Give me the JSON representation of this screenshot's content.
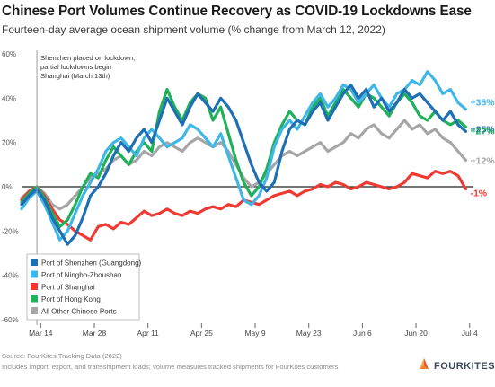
{
  "title": "Chinese Port Volumes Continue Recovery as COVID-19 Lockdowns Ease",
  "subtitle": "Fourteen-day average ocean shipment volume (% change from March 12, 2022)",
  "annotation": "Shenzhen placed on lockdown, partial lockdowns begin in Shanghai (March 13th)",
  "footer": {
    "source": "Source: FourKites Tracking Data (2022)",
    "note": "Includes import, export, and transshipment loads; volume measures tracked shipments for FourKites customers"
  },
  "logo": {
    "text": "FOURKITES",
    "icon": "kite-icon"
  },
  "colors": {
    "shenzhen": "#1f6fb5",
    "ningbo": "#3fb7e6",
    "shanghai": "#ee3a33",
    "hongkong": "#1fb05a",
    "other": "#a6a6a6"
  },
  "chart_data": {
    "type": "line",
    "title": "Chinese Port Volumes Continue Recovery as COVID-19 Lockdowns Ease",
    "subtitle": "Fourteen-day average ocean shipment volume (% change from March 12, 2022)",
    "x_tick_labels": [
      "Mar 14",
      "Mar 28",
      "Apr 11",
      "Apr 25",
      "May 9",
      "May 23",
      "Jun 6",
      "Jun 20",
      "Jul 4"
    ],
    "x_tick_days": [
      0,
      14,
      28,
      42,
      56,
      70,
      84,
      98,
      112
    ],
    "x_range": [
      "Mar 9",
      "Jul 5"
    ],
    "y_tick_labels": [
      "60%",
      "40%",
      "20%",
      "0%",
      "-20%",
      "-40%",
      "-60%"
    ],
    "y_ticks": [
      60,
      40,
      20,
      0,
      -20,
      -40,
      -60
    ],
    "ylim": [
      -60,
      60
    ],
    "grid": false,
    "legend_position": "bottom-left",
    "series": [
      {
        "name": "Port of Shenzhen (Guangdong)",
        "end_label": "+25%",
        "x": [
          "Mar 9",
          "Mar 11",
          "Mar 13",
          "Mar 15",
          "Mar 17",
          "Mar 19",
          "Mar 21",
          "Mar 23",
          "Mar 25",
          "Mar 27",
          "Mar 29",
          "Mar 31",
          "Apr 2",
          "Apr 4",
          "Apr 6",
          "Apr 8",
          "Apr 10",
          "Apr 12",
          "Apr 14",
          "Apr 16",
          "Apr 18",
          "Apr 20",
          "Apr 22",
          "Apr 24",
          "Apr 26",
          "Apr 28",
          "Apr 30",
          "May 2",
          "May 4",
          "May 6",
          "May 8",
          "May 10",
          "May 12",
          "May 14",
          "May 16",
          "May 18",
          "May 20",
          "May 22",
          "May 24",
          "May 26",
          "May 28",
          "May 30",
          "Jun 1",
          "Jun 3",
          "Jun 5",
          "Jun 7",
          "Jun 9",
          "Jun 11",
          "Jun 13",
          "Jun 15",
          "Jun 17",
          "Jun 19",
          "Jun 21",
          "Jun 23",
          "Jun 25",
          "Jun 27",
          "Jun 29",
          "Jul 1",
          "Jul 3"
        ],
        "values": [
          -8,
          -4,
          -1,
          -6,
          -14,
          -20,
          -26,
          -22,
          -14,
          -4,
          0,
          6,
          14,
          20,
          16,
          22,
          26,
          20,
          30,
          40,
          34,
          28,
          36,
          42,
          38,
          34,
          40,
          36,
          30,
          20,
          10,
          2,
          -2,
          2,
          16,
          26,
          30,
          28,
          34,
          38,
          30,
          36,
          42,
          46,
          40,
          44,
          36,
          40,
          34,
          38,
          44,
          40,
          42,
          38,
          34,
          30,
          34,
          28,
          25
        ]
      },
      {
        "name": "Port of Ningbo-Zhoushan",
        "end_label": "+35%",
        "x": [
          "Mar 9",
          "Mar 11",
          "Mar 13",
          "Mar 15",
          "Mar 17",
          "Mar 19",
          "Mar 21",
          "Mar 23",
          "Mar 25",
          "Mar 27",
          "Mar 29",
          "Mar 31",
          "Apr 2",
          "Apr 4",
          "Apr 6",
          "Apr 8",
          "Apr 10",
          "Apr 12",
          "Apr 14",
          "Apr 16",
          "Apr 18",
          "Apr 20",
          "Apr 22",
          "Apr 24",
          "Apr 26",
          "Apr 28",
          "Apr 30",
          "May 2",
          "May 4",
          "May 6",
          "May 8",
          "May 10",
          "May 12",
          "May 14",
          "May 16",
          "May 18",
          "May 20",
          "May 22",
          "May 24",
          "May 26",
          "May 28",
          "May 30",
          "Jun 1",
          "Jun 3",
          "Jun 5",
          "Jun 7",
          "Jun 9",
          "Jun 11",
          "Jun 13",
          "Jun 15",
          "Jun 17",
          "Jun 19",
          "Jun 21",
          "Jun 23",
          "Jun 25",
          "Jun 27",
          "Jun 29",
          "Jul 1",
          "Jul 3"
        ],
        "values": [
          -10,
          -5,
          -2,
          -8,
          -16,
          -24,
          -20,
          -12,
          -4,
          2,
          8,
          16,
          20,
          22,
          18,
          14,
          22,
          26,
          22,
          18,
          20,
          22,
          28,
          26,
          22,
          18,
          24,
          14,
          4,
          -6,
          -8,
          -4,
          4,
          18,
          26,
          30,
          26,
          32,
          38,
          42,
          36,
          40,
          46,
          44,
          38,
          42,
          46,
          40,
          36,
          42,
          44,
          48,
          46,
          52,
          48,
          42,
          44,
          38,
          35
        ]
      },
      {
        "name": "Port of Shanghai",
        "end_label": "-1%",
        "x": [
          "Mar 9",
          "Mar 11",
          "Mar 13",
          "Mar 15",
          "Mar 17",
          "Mar 19",
          "Mar 21",
          "Mar 23",
          "Mar 25",
          "Mar 27",
          "Mar 29",
          "Mar 31",
          "Apr 2",
          "Apr 4",
          "Apr 6",
          "Apr 8",
          "Apr 10",
          "Apr 12",
          "Apr 14",
          "Apr 16",
          "Apr 18",
          "Apr 20",
          "Apr 22",
          "Apr 24",
          "Apr 26",
          "Apr 28",
          "Apr 30",
          "May 2",
          "May 4",
          "May 6",
          "May 8",
          "May 10",
          "May 12",
          "May 14",
          "May 16",
          "May 18",
          "May 20",
          "May 22",
          "May 24",
          "May 26",
          "May 28",
          "May 30",
          "Jun 1",
          "Jun 3",
          "Jun 5",
          "Jun 7",
          "Jun 9",
          "Jun 11",
          "Jun 13",
          "Jun 15",
          "Jun 17",
          "Jun 19",
          "Jun 21",
          "Jun 23",
          "Jun 25",
          "Jun 27",
          "Jun 29",
          "Jul 1",
          "Jul 3"
        ],
        "values": [
          -6,
          -2,
          0,
          -4,
          -10,
          -15,
          -17,
          -20,
          -22,
          -24,
          -18,
          -17,
          -19,
          -16,
          -17,
          -14,
          -11,
          -13,
          -12,
          -10,
          -12,
          -13,
          -11,
          -12,
          -10,
          -9,
          -10,
          -8,
          -9,
          -6,
          -7,
          -8,
          -6,
          -4,
          -3,
          -2,
          -4,
          -2,
          -1,
          1,
          0,
          2,
          1,
          -1,
          0,
          2,
          1,
          0,
          -1,
          0,
          2,
          6,
          5,
          4,
          7,
          6,
          7,
          5,
          -1
        ]
      },
      {
        "name": "Port of Hong Kong",
        "end_label": "+27%",
        "x": [
          "Mar 9",
          "Mar 11",
          "Mar 13",
          "Mar 15",
          "Mar 17",
          "Mar 19",
          "Mar 21",
          "Mar 23",
          "Mar 25",
          "Mar 27",
          "Mar 29",
          "Mar 31",
          "Apr 2",
          "Apr 4",
          "Apr 6",
          "Apr 8",
          "Apr 10",
          "Apr 12",
          "Apr 14",
          "Apr 16",
          "Apr 18",
          "Apr 20",
          "Apr 22",
          "Apr 24",
          "Apr 26",
          "Apr 28",
          "Apr 30",
          "May 2",
          "May 4",
          "May 6",
          "May 8",
          "May 10",
          "May 12",
          "May 14",
          "May 16",
          "May 18",
          "May 20",
          "May 22",
          "May 24",
          "May 26",
          "May 28",
          "May 30",
          "Jun 1",
          "Jun 3",
          "Jun 5",
          "Jun 7",
          "Jun 9",
          "Jun 11",
          "Jun 13",
          "Jun 15",
          "Jun 17",
          "Jun 19",
          "Jun 21",
          "Jun 23",
          "Jun 25",
          "Jun 27",
          "Jun 29",
          "Jul 1",
          "Jul 3"
        ],
        "values": [
          -7,
          -3,
          0,
          -5,
          -12,
          -18,
          -15,
          -8,
          0,
          6,
          4,
          12,
          18,
          14,
          10,
          16,
          20,
          16,
          34,
          44,
          36,
          30,
          38,
          42,
          40,
          30,
          36,
          24,
          12,
          2,
          -4,
          0,
          8,
          20,
          28,
          34,
          30,
          28,
          36,
          40,
          32,
          38,
          44,
          40,
          36,
          42,
          40,
          36,
          32,
          38,
          42,
          38,
          32,
          30,
          34,
          30,
          28,
          30,
          27
        ]
      },
      {
        "name": "All Other Chinese Ports",
        "end_label": "+12%",
        "x": [
          "Mar 9",
          "Mar 11",
          "Mar 13",
          "Mar 15",
          "Mar 17",
          "Mar 19",
          "Mar 21",
          "Mar 23",
          "Mar 25",
          "Mar 27",
          "Mar 29",
          "Mar 31",
          "Apr 2",
          "Apr 4",
          "Apr 6",
          "Apr 8",
          "Apr 10",
          "Apr 12",
          "Apr 14",
          "Apr 16",
          "Apr 18",
          "Apr 20",
          "Apr 22",
          "Apr 24",
          "Apr 26",
          "Apr 28",
          "Apr 30",
          "May 2",
          "May 4",
          "May 6",
          "May 8",
          "May 10",
          "May 12",
          "May 14",
          "May 16",
          "May 18",
          "May 20",
          "May 22",
          "May 24",
          "May 26",
          "May 28",
          "May 30",
          "Jun 1",
          "Jun 3",
          "Jun 5",
          "Jun 7",
          "Jun 9",
          "Jun 11",
          "Jun 13",
          "Jun 15",
          "Jun 17",
          "Jun 19",
          "Jun 21",
          "Jun 23",
          "Jun 25",
          "Jun 27",
          "Jun 29",
          "Jul 1",
          "Jul 3"
        ],
        "values": [
          -5,
          -2,
          0,
          -3,
          -8,
          -10,
          -8,
          -4,
          0,
          4,
          6,
          8,
          12,
          14,
          10,
          12,
          16,
          14,
          18,
          20,
          18,
          16,
          20,
          22,
          20,
          18,
          20,
          16,
          10,
          4,
          0,
          2,
          6,
          10,
          14,
          16,
          14,
          16,
          18,
          20,
          16,
          18,
          20,
          24,
          22,
          26,
          28,
          24,
          22,
          26,
          30,
          26,
          28,
          24,
          26,
          22,
          20,
          16,
          12
        ]
      }
    ]
  }
}
